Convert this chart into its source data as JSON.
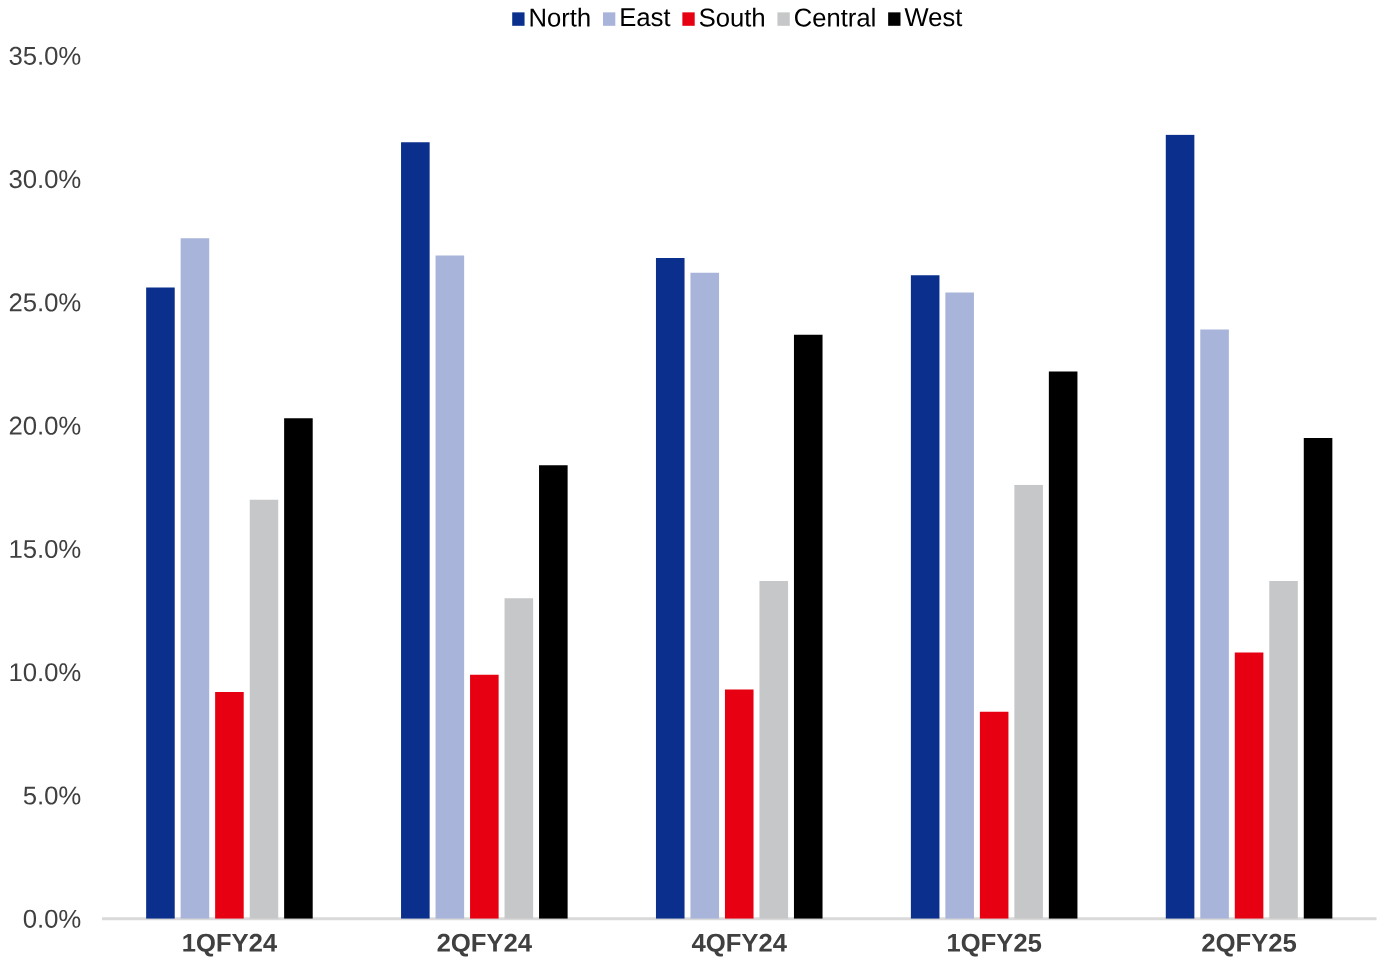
{
  "chart_data": {
    "type": "bar",
    "categories": [
      "1QFY24",
      "2QFY24",
      "4QFY24",
      "1QFY25",
      "2QFY25"
    ],
    "series": [
      {
        "name": "North",
        "color": "#0a2f8c",
        "values": [
          25.6,
          31.5,
          26.8,
          26.1,
          31.8
        ]
      },
      {
        "name": "East",
        "color": "#a8b4d9",
        "values": [
          27.6,
          26.9,
          26.2,
          25.4,
          23.9
        ]
      },
      {
        "name": "South",
        "color": "#e60012",
        "values": [
          9.2,
          9.9,
          9.3,
          8.4,
          10.8
        ]
      },
      {
        "name": "Central",
        "color": "#c6c7c8",
        "values": [
          17.0,
          13.0,
          13.7,
          17.6,
          13.7
        ]
      },
      {
        "name": "West",
        "color": "#000000",
        "values": [
          20.3,
          18.4,
          23.7,
          22.2,
          19.5
        ]
      }
    ],
    "ylim": [
      0,
      35
    ],
    "yticks": [
      {
        "value": 0,
        "label": "0.0%"
      },
      {
        "value": 5,
        "label": "5.0%"
      },
      {
        "value": 10,
        "label": "10.0%"
      },
      {
        "value": 15,
        "label": "15.0%"
      },
      {
        "value": 20,
        "label": "20.0%"
      },
      {
        "value": 25,
        "label": "25.0%"
      },
      {
        "value": 30,
        "label": "30.0%"
      },
      {
        "value": 35,
        "label": "35.0%"
      }
    ],
    "grid": false,
    "legend": "top"
  }
}
